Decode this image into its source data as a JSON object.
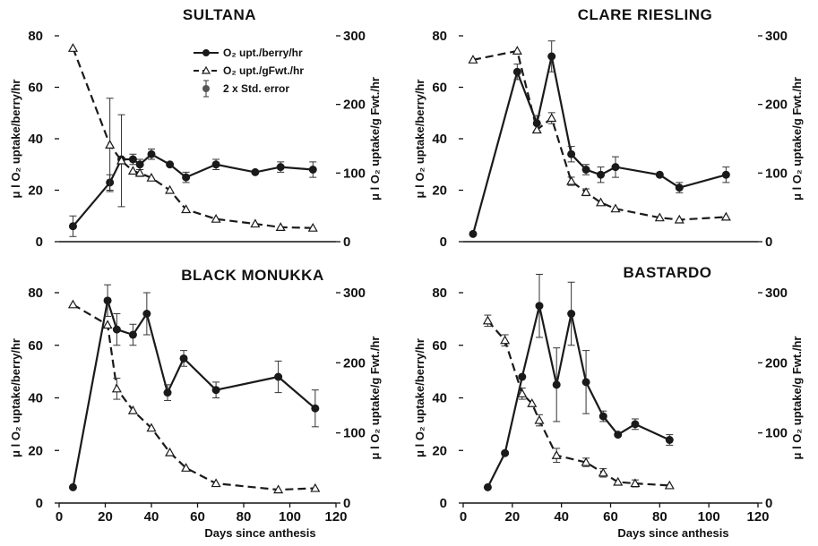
{
  "figure": {
    "legend": {
      "per_berry": "O₂ upt./berry/hr",
      "per_gfwt": "O₂ upt./gFwt./hr",
      "std_error": "2 x Std. error"
    },
    "colors": {
      "per_berry": "#1a1a1a",
      "per_gfwt": "#1a1a1a",
      "background": "#ffffff"
    }
  },
  "chart_data": [
    {
      "type": "line",
      "title": "SULTANA",
      "xlabel": "",
      "ylabel": "μ l O₂ uptake/berry/hr",
      "y2label": "μ l O₂ uptake/g Fwt./hr",
      "xlim": [
        0,
        120
      ],
      "ylim": [
        0,
        80
      ],
      "y2lim": [
        0,
        300
      ],
      "x_ticks": [],
      "y_ticks": [
        "0",
        "20",
        "40",
        "60",
        "80"
      ],
      "y2_ticks": [
        "0",
        "100",
        "200",
        "300"
      ],
      "legend": "top-right",
      "series": [
        {
          "name": "O₂ upt./berry/hr",
          "axis": "left",
          "style": "solid-filled-circle",
          "x": [
            6,
            22,
            27,
            32,
            35,
            40,
            48,
            55,
            68,
            85,
            96,
            110
          ],
          "y": [
            6,
            23,
            32,
            32,
            30,
            34,
            30,
            25,
            30,
            27,
            29,
            28
          ],
          "err": [
            4,
            3,
            0,
            2,
            2,
            2,
            0,
            2,
            2,
            0,
            2,
            3
          ]
        },
        {
          "name": "O₂ upt./gFwt./hr",
          "axis": "right",
          "style": "dashed-open-triangle",
          "x": [
            6,
            22,
            27,
            32,
            35,
            40,
            48,
            55,
            68,
            85,
            96,
            110
          ],
          "y": [
            282,
            141,
            118,
            103,
            100,
            93,
            75,
            47,
            33,
            26,
            21,
            20
          ],
          "err": [
            0,
            68,
            67,
            0,
            5,
            0,
            0,
            0,
            0,
            0,
            0,
            0
          ]
        }
      ]
    },
    {
      "type": "line",
      "title": "CLARE  RIESLING",
      "xlabel": "",
      "ylabel": "μ l O₂ uptake/berry/hr",
      "y2label": "μ l O₂ uptake/g Fwt./hr",
      "xlim": [
        0,
        120
      ],
      "ylim": [
        0,
        80
      ],
      "y2lim": [
        0,
        300
      ],
      "x_ticks": [],
      "y_ticks": [
        "0",
        "20",
        "40",
        "60",
        "80"
      ],
      "y2_ticks": [
        "0",
        "100",
        "200",
        "300"
      ],
      "legend": "none",
      "series": [
        {
          "name": "O₂ upt./berry/hr",
          "axis": "left",
          "style": "solid-filled-circle",
          "x": [
            4,
            22,
            30,
            36,
            44,
            50,
            56,
            62,
            80,
            88,
            107
          ],
          "y": [
            3,
            66,
            46,
            72,
            34,
            28,
            26,
            29,
            26,
            21,
            26
          ],
          "err": [
            0,
            3,
            3,
            6,
            3,
            2,
            3,
            4,
            0,
            2,
            3
          ]
        },
        {
          "name": "O₂ upt./gFwt./hr",
          "axis": "right",
          "style": "dashed-open-triangle",
          "x": [
            4,
            22,
            30,
            36,
            44,
            50,
            56,
            62,
            80,
            88,
            107
          ],
          "y": [
            265,
            278,
            163,
            180,
            88,
            72,
            57,
            48,
            35,
            32,
            36
          ],
          "err": [
            0,
            0,
            0,
            8,
            6,
            5,
            0,
            0,
            0,
            0,
            0
          ]
        }
      ]
    },
    {
      "type": "line",
      "title": "BLACK  MONUKKA",
      "xlabel": "Days since anthesis",
      "ylabel": "μ l O₂ uptake/berry/hr",
      "y2label": "μ l O₂ uptake/g Fwt./hr",
      "xlim": [
        0,
        120
      ],
      "ylim": [
        0,
        80
      ],
      "y2lim": [
        0,
        300
      ],
      "x_ticks": [
        "0",
        "20",
        "40",
        "60",
        "80",
        "100",
        "120"
      ],
      "y_ticks": [
        "0",
        "20",
        "40",
        "60",
        "80"
      ],
      "y2_ticks": [
        "0",
        "100",
        "200",
        "300"
      ],
      "legend": "none",
      "series": [
        {
          "name": "O₂ upt./berry/hr",
          "axis": "left",
          "style": "solid-filled-circle",
          "x": [
            6,
            21,
            25,
            32,
            38,
            47,
            54,
            68,
            95,
            111
          ],
          "y": [
            6,
            77,
            66,
            64,
            72,
            42,
            55,
            43,
            48,
            36
          ],
          "err": [
            0,
            6,
            6,
            4,
            8,
            3,
            3,
            3,
            6,
            7
          ]
        },
        {
          "name": "O₂ upt./gFwt./hr",
          "axis": "right",
          "style": "dashed-open-triangle",
          "x": [
            6,
            21,
            25,
            32,
            40,
            48,
            55,
            68,
            95,
            111
          ],
          "y": [
            283,
            254,
            163,
            132,
            107,
            72,
            50,
            28,
            19,
            21
          ],
          "err": [
            0,
            0,
            15,
            0,
            0,
            0,
            0,
            0,
            0,
            0
          ]
        }
      ]
    },
    {
      "type": "line",
      "title": "BASTARDO",
      "xlabel": "Days since anthesis",
      "ylabel": "μ l O₂ uptake/berry/hr",
      "y2label": "μ l O₂ uptake/g Fwt./hr",
      "xlim": [
        0,
        120
      ],
      "ylim": [
        0,
        80
      ],
      "y2lim": [
        0,
        300
      ],
      "x_ticks": [
        "0",
        "20",
        "40",
        "60",
        "80",
        "100",
        "120"
      ],
      "y_ticks": [
        "0",
        "20",
        "40",
        "60",
        "80"
      ],
      "y2_ticks": [
        "0",
        "100",
        "200",
        "300"
      ],
      "legend": "none",
      "series": [
        {
          "name": "O₂ upt./berry/hr",
          "axis": "left",
          "style": "solid-filled-circle",
          "x": [
            10,
            17,
            24,
            31,
            38,
            44,
            50,
            57,
            63,
            70,
            84
          ],
          "y": [
            6,
            19,
            48,
            75,
            45,
            72,
            46,
            33,
            26,
            30,
            24
          ],
          "err": [
            0,
            0,
            0,
            12,
            14,
            12,
            12,
            2,
            0,
            2,
            2
          ]
        },
        {
          "name": "O₂ upt./gFwt./hr",
          "axis": "right",
          "style": "dashed-open-triangle",
          "x": [
            10,
            17,
            24,
            28,
            31,
            38,
            50,
            57,
            63,
            70,
            84
          ],
          "y": [
            260,
            232,
            156,
            142,
            118,
            68,
            58,
            43,
            30,
            28,
            25
          ],
          "err": [
            8,
            8,
            8,
            0,
            8,
            10,
            6,
            6,
            0,
            5,
            0
          ]
        }
      ]
    }
  ]
}
